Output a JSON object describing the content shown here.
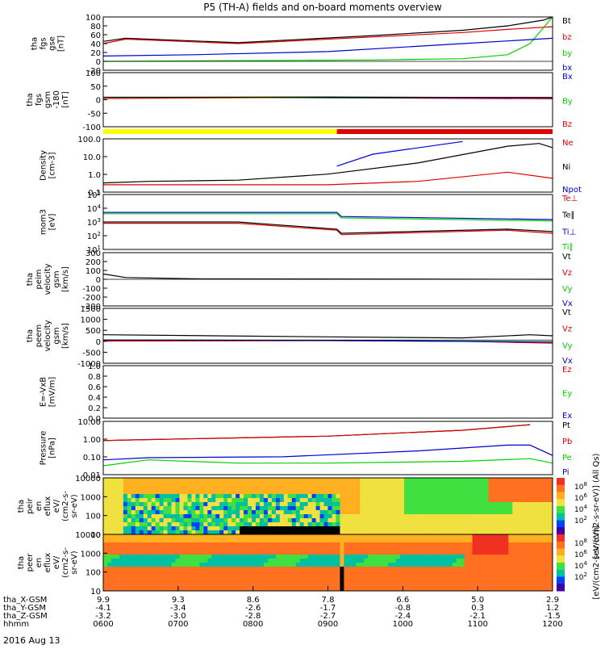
{
  "title": "P5 (TH-A) fields and on-board moments overview",
  "date_label": "2016 Aug 13",
  "colors": {
    "black": "#000000",
    "red": "#e00000",
    "green": "#00d000",
    "blue": "#0000d0",
    "yellow": "#ffff00",
    "barred": "#e00000"
  },
  "chart_data": [
    {
      "type": "line",
      "ylabel": [
        "tha",
        "fgs",
        "gse",
        "[nT]"
      ],
      "yticks": [
        "100",
        "80",
        "60",
        "40",
        "20",
        "0",
        "-20"
      ],
      "ylim": [
        -20,
        100
      ],
      "legend": [
        {
          "name": "Bt",
          "color": "black"
        },
        {
          "name": "bz",
          "color": "red"
        },
        {
          "name": "by",
          "color": "green"
        },
        {
          "name": "bx",
          "color": "blue"
        }
      ],
      "series": [
        {
          "name": "Bt",
          "color": "black",
          "x": [
            0,
            0.05,
            0.3,
            0.6,
            0.8,
            0.9,
            0.98,
            1
          ],
          "y": [
            45,
            52,
            42,
            58,
            70,
            80,
            93,
            100
          ]
        },
        {
          "name": "bz",
          "color": "red",
          "x": [
            0,
            0.05,
            0.3,
            0.6,
            0.8,
            0.9,
            1
          ],
          "y": [
            40,
            50,
            40,
            55,
            65,
            72,
            78
          ]
        },
        {
          "name": "by",
          "color": "green",
          "x": [
            0,
            0.6,
            0.8,
            0.9,
            0.95,
            1
          ],
          "y": [
            0,
            3,
            6,
            15,
            40,
            100
          ]
        },
        {
          "name": "bx",
          "color": "blue",
          "x": [
            0,
            0.2,
            0.5,
            0.8,
            1
          ],
          "y": [
            12,
            15,
            22,
            40,
            52
          ]
        }
      ]
    },
    {
      "type": "line",
      "ylabel": [
        "tha",
        "fgs",
        "gsm",
        "-180",
        "[nT]"
      ],
      "yticks": [
        "100",
        "50",
        "0",
        "-50",
        "-100"
      ],
      "ylim": [
        -120,
        100
      ],
      "legend": [
        {
          "name": "Bx",
          "color": "blue"
        },
        {
          "name": "By",
          "color": "green"
        },
        {
          "name": "Bz",
          "color": "red"
        }
      ],
      "series": [
        {
          "name": "Bx",
          "color": "blue",
          "x": [
            0,
            0.5,
            1
          ],
          "y": [
            0,
            -2,
            -6
          ]
        },
        {
          "name": "By",
          "color": "green",
          "x": [
            0,
            0.5,
            1
          ],
          "y": [
            0,
            2,
            -3
          ]
        },
        {
          "name": "Bz",
          "color": "red",
          "x": [
            0,
            0.5,
            1
          ],
          "y": [
            -5,
            0,
            -4
          ]
        }
      ]
    },
    {
      "type": "line",
      "ylabel": [
        "Density",
        "[cm-3]"
      ],
      "yticks": [
        "100.0",
        "10.0",
        "1.0",
        "0.1"
      ],
      "ylim": [
        0.1,
        300
      ],
      "log": true,
      "legend": [
        {
          "name": "Ne",
          "color": "red"
        },
        {
          "name": "Ni",
          "color": "black"
        },
        {
          "name": "Npot",
          "color": "blue"
        }
      ],
      "series": [
        {
          "name": "Ni",
          "color": "black",
          "x": [
            0,
            0.1,
            0.3,
            0.5,
            0.7,
            0.9,
            0.97,
            1
          ],
          "y": [
            0.4,
            0.5,
            0.6,
            1.5,
            8,
            100,
            150,
            80
          ]
        },
        {
          "name": "Ne",
          "color": "red",
          "x": [
            0,
            0.1,
            0.3,
            0.5,
            0.7,
            0.9,
            1
          ],
          "y": [
            0.3,
            0.3,
            0.3,
            0.3,
            0.5,
            2.0,
            0.8
          ]
        },
        {
          "name": "Npot",
          "color": "blue",
          "x": [
            0.52,
            0.6,
            0.8
          ],
          "y": [
            5,
            30,
            200
          ]
        }
      ]
    },
    {
      "type": "line",
      "ylabel": [
        "mom3",
        "[eV]"
      ],
      "yticks": [
        "10^5",
        "10^4",
        "10^3",
        "10^2",
        "10^1"
      ],
      "ylim": [
        10,
        100000
      ],
      "log": true,
      "legend": [
        {
          "name": "Te⊥",
          "color": "red"
        },
        {
          "name": "Te∥",
          "color": "black"
        },
        {
          "name": "Ti⊥",
          "color": "blue"
        },
        {
          "name": "Ti∥",
          "color": "green"
        }
      ],
      "series": [
        {
          "name": "Ti⊥",
          "color": "blue",
          "x": [
            0,
            0.52,
            0.53,
            1
          ],
          "y": [
            5000,
            5000,
            2500,
            1500
          ]
        },
        {
          "name": "Ti∥",
          "color": "green",
          "x": [
            0,
            0.52,
            0.53,
            1
          ],
          "y": [
            4000,
            4000,
            2000,
            1200
          ]
        },
        {
          "name": "Te∥",
          "color": "black",
          "x": [
            0,
            0.3,
            0.52,
            0.53,
            0.9,
            1
          ],
          "y": [
            1000,
            1000,
            300,
            150,
            300,
            200
          ]
        },
        {
          "name": "Te⊥",
          "color": "red",
          "x": [
            0,
            0.3,
            0.52,
            0.53,
            0.9,
            1
          ],
          "y": [
            800,
            800,
            250,
            120,
            250,
            150
          ]
        }
      ]
    },
    {
      "type": "line",
      "ylabel": [
        "tha",
        "peim",
        "velocity",
        "gsm",
        "[km/s]"
      ],
      "yticks": [
        "300",
        "200",
        "100",
        "0",
        "-100",
        "-200",
        "-300"
      ],
      "ylim": [
        -300,
        300
      ],
      "legend": [
        {
          "name": "Vt",
          "color": "black"
        },
        {
          "name": "Vz",
          "color": "red"
        },
        {
          "name": "Vy",
          "color": "green"
        },
        {
          "name": "Vx",
          "color": "blue"
        }
      ],
      "series": [
        {
          "name": "Vt",
          "color": "black",
          "x": [
            0,
            0.05,
            0.2,
            1
          ],
          "y": [
            60,
            20,
            5,
            0
          ]
        }
      ]
    },
    {
      "type": "line",
      "ylabel": [
        "tha",
        "peem",
        "velocity",
        "gsm",
        "[km/s]"
      ],
      "yticks": [
        "1500",
        "1000",
        "500",
        "0",
        "-500",
        "-1000"
      ],
      "ylim": [
        -1100,
        1500
      ],
      "legend": [
        {
          "name": "Vt",
          "color": "black"
        },
        {
          "name": "Vz",
          "color": "red"
        },
        {
          "name": "Vy",
          "color": "green"
        },
        {
          "name": "Vx",
          "color": "blue"
        }
      ],
      "series": [
        {
          "name": "Vt",
          "color": "black",
          "x": [
            0,
            0.5,
            0.8,
            0.95,
            1
          ],
          "y": [
            250,
            150,
            100,
            250,
            200
          ]
        },
        {
          "name": "Vz",
          "color": "red",
          "x": [
            0,
            0.5,
            0.8,
            1
          ],
          "y": [
            -50,
            -30,
            -60,
            -150
          ]
        },
        {
          "name": "Vy",
          "color": "green",
          "x": [
            0,
            0.5,
            1
          ],
          "y": [
            0,
            -10,
            -80
          ]
        },
        {
          "name": "Vx",
          "color": "blue",
          "x": [
            0,
            0.5,
            1
          ],
          "y": [
            0,
            -20,
            -100
          ]
        }
      ]
    },
    {
      "type": "line",
      "ylabel": [
        "E=-VxB",
        "[mV/m]"
      ],
      "yticks": [
        "1.0",
        "0.8",
        "0.6",
        "0.4",
        "0.2",
        "0.0"
      ],
      "ylim": [
        0,
        1
      ],
      "legend": [
        {
          "name": "Ez",
          "color": "red"
        },
        {
          "name": "Ey",
          "color": "green"
        },
        {
          "name": "Ex",
          "color": "blue"
        }
      ],
      "series": []
    },
    {
      "type": "line",
      "ylabel": [
        "Pressure",
        "[nPa]"
      ],
      "yticks": [
        "10.00",
        "1.00",
        "0.10",
        "0.01"
      ],
      "ylim": [
        0.005,
        20
      ],
      "log": true,
      "legend": [
        {
          "name": "Pt",
          "color": "black"
        },
        {
          "name": "Pb",
          "color": "red"
        },
        {
          "name": "Pe",
          "color": "green"
        },
        {
          "name": "Pi",
          "color": "blue"
        }
      ],
      "series": [
        {
          "name": "Pt",
          "color": "black",
          "x": [
            0,
            0.05,
            0.5,
            0.8,
            0.95
          ],
          "y": [
            1.0,
            1.1,
            2.0,
            5.0,
            12
          ]
        },
        {
          "name": "Pb",
          "color": "red",
          "x": [
            0,
            0.05,
            0.5,
            0.8,
            0.95
          ],
          "y": [
            1.0,
            1.1,
            2.0,
            5.0,
            12
          ]
        },
        {
          "name": "Pi",
          "color": "blue",
          "x": [
            0,
            0.1,
            0.4,
            0.7,
            0.9,
            0.95,
            1
          ],
          "y": [
            0.05,
            0.07,
            0.08,
            0.2,
            0.5,
            0.5,
            0.1
          ]
        },
        {
          "name": "Pe",
          "color": "green",
          "x": [
            0,
            0.1,
            0.3,
            0.5,
            0.8,
            0.95,
            1
          ],
          "y": [
            0.02,
            0.05,
            0.03,
            0.03,
            0.04,
            0.06,
            0.03
          ]
        }
      ]
    },
    {
      "type": "heatmap",
      "ylabel": [
        "tha",
        "peir",
        "en",
        "eflux",
        "eV/",
        "(cm2-s-",
        "sr-eV)"
      ],
      "yticks": [
        "10000",
        "1000",
        "100",
        "10"
      ],
      "log": true,
      "colorbar_ticks": [
        "10^8",
        "10^6",
        "10^4",
        "10^2"
      ],
      "colorbar_label": "[eV/(cm2-s-sr-eV)] (All Qs)"
    },
    {
      "type": "heatmap",
      "ylabel": [
        "tha",
        "peer",
        "en",
        "eflux",
        "eV/",
        "(cm2-s-",
        "sr-eV)"
      ],
      "yticks": [
        "10000",
        "1000",
        "100",
        "10"
      ],
      "log": true,
      "colorbar_ticks": [
        "10^8",
        "10^6",
        "10^4",
        "10^2"
      ],
      "colorbar_label": "[eV/(cm2-s-sr-eV)]"
    }
  ],
  "xaxis": {
    "rows": [
      {
        "label": "tha_X-GSM",
        "values": [
          "9.9",
          "9.3",
          "8.6",
          "7.8",
          "6.6",
          "5.0",
          "2.9"
        ]
      },
      {
        "label": "tha_Y-GSM",
        "values": [
          "-4.1",
          "-3.4",
          "-2.6",
          "-1.7",
          "-0.8",
          "0.3",
          "1.2"
        ]
      },
      {
        "label": "tha_Z-GSM",
        "values": [
          "-3.2",
          "-3.0",
          "-2.8",
          "-2.7",
          "-2.4",
          "-2.1",
          "-1.5"
        ]
      },
      {
        "label": "hhmm",
        "values": [
          "0600",
          "0700",
          "0800",
          "0900",
          "1000",
          "1100",
          "1200"
        ]
      }
    ]
  }
}
